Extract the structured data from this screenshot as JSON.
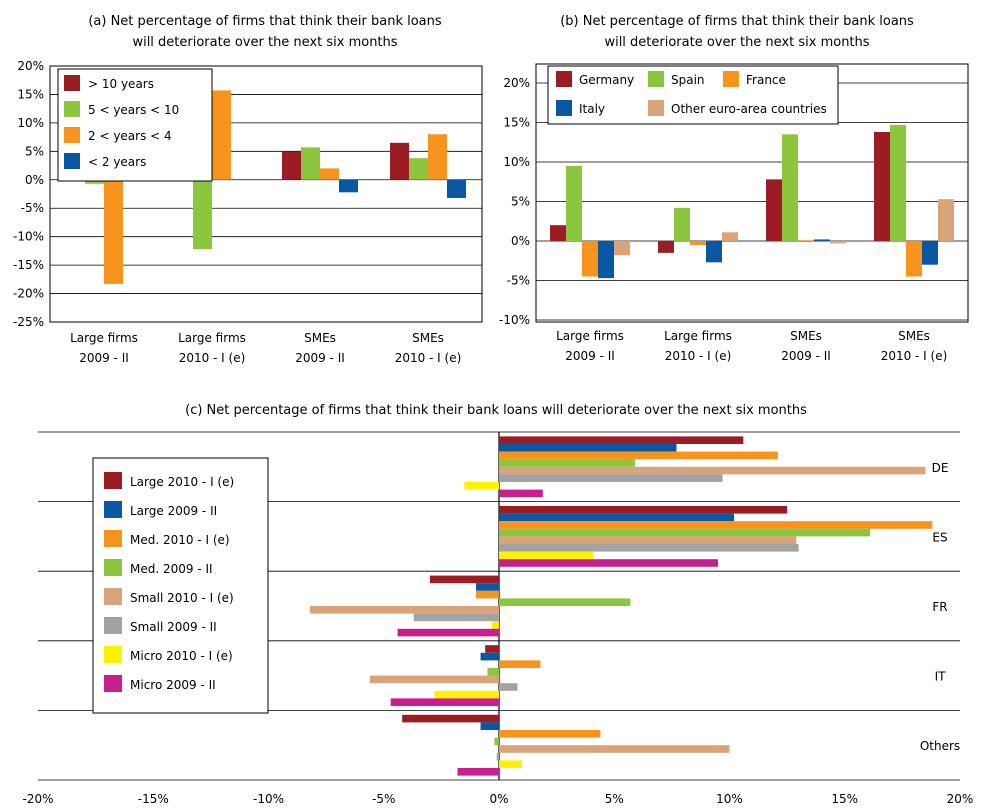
{
  "chart_data": [
    {
      "id": "a",
      "type": "bar",
      "title_lines": [
        "(a) Net percentage of firms that think their bank loans",
        "will deteriorate over the next six months"
      ],
      "categories": [
        [
          "Large firms",
          "2009 - II"
        ],
        [
          "Large firms",
          "2010 - I (e)"
        ],
        [
          "SMEs",
          "2009 - II"
        ],
        [
          "SMEs",
          "2010 - I (e)"
        ]
      ],
      "yticks": [
        "20%",
        "15%",
        "10%",
        "5%",
        "0%",
        "-5%",
        "-10%",
        "-15%",
        "-20%",
        "-25%"
      ],
      "ylim": [
        -25,
        20
      ],
      "grid": true,
      "legend_position": "top-left",
      "series": [
        {
          "name": "> 10 years",
          "color": "#9b1c22",
          "values": [
            null,
            1.0,
            5.0,
            6.5
          ]
        },
        {
          "name": "5 < years < 10",
          "color": "#8cc63f",
          "values": [
            -0.7,
            -12.2,
            5.7,
            3.8
          ]
        },
        {
          "name": "2 < years < 4",
          "color": "#f7941d",
          "values": [
            -18.3,
            15.7,
            2.0,
            8.0
          ]
        },
        {
          "name": "< 2 years",
          "color": "#0a57a4",
          "values": [
            null,
            null,
            -2.2,
            -3.2
          ]
        }
      ]
    },
    {
      "id": "b",
      "type": "bar",
      "title_lines": [
        "(b) Net percentage of firms that think their bank loans",
        "will deteriorate over the next six months"
      ],
      "categories": [
        [
          "Large firms",
          "2009 - II"
        ],
        [
          "Large firms",
          "2010 - I (e)"
        ],
        [
          "SMEs",
          "2009 - II"
        ],
        [
          "SMEs",
          "2010 - I (e)"
        ]
      ],
      "yticks": [
        "20%",
        "15%",
        "10%",
        "5%",
        "0%",
        "-5%",
        "-10%"
      ],
      "ylim": [
        -10,
        20
      ],
      "grid": true,
      "legend_position": "top",
      "series": [
        {
          "name": "Germany",
          "color": "#9b1c22",
          "values": [
            2.0,
            -1.5,
            7.8,
            13.8
          ]
        },
        {
          "name": "Spain",
          "color": "#8cc63f",
          "values": [
            9.5,
            4.2,
            13.5,
            14.7
          ]
        },
        {
          "name": "France",
          "color": "#f7941d",
          "values": [
            -4.5,
            -0.5,
            0.1,
            -4.5
          ]
        },
        {
          "name": "Italy",
          "color": "#0a57a4",
          "values": [
            -4.7,
            -2.7,
            0.2,
            -3.0
          ]
        },
        {
          "name": "Other euro-area countries",
          "color": "#d9a47a",
          "values": [
            -1.8,
            1.1,
            -0.3,
            5.3
          ]
        }
      ]
    },
    {
      "id": "c",
      "type": "bar",
      "orientation": "horizontal",
      "title": "(c) Net percentage of firms that think their bank loans will deteriorate over the next six months",
      "categories": [
        "DE",
        "ES",
        "FR",
        "IT",
        "Others"
      ],
      "xticks": [
        "-20%",
        "-15%",
        "-10%",
        "-5%",
        "0%",
        "5%",
        "10%",
        "15%",
        "20%"
      ],
      "xlim": [
        -20,
        20
      ],
      "grid": true,
      "legend_position": "left",
      "series": [
        {
          "name": "Large 2010 - I (e)",
          "color": "#9b1c22",
          "values": [
            10.6,
            12.5,
            -3.0,
            -0.6,
            -4.2
          ]
        },
        {
          "name": "Large 2009 - II",
          "color": "#0a57a4",
          "values": [
            7.7,
            10.2,
            -1.0,
            -0.8,
            -0.8
          ]
        },
        {
          "name": "Med. 2010 - I (e)",
          "color": "#f7941d",
          "values": [
            12.1,
            18.8,
            -1.0,
            1.8,
            4.4
          ]
        },
        {
          "name": "Med. 2009 - II",
          "color": "#8cc63f",
          "values": [
            5.9,
            16.1,
            5.7,
            -0.5,
            -0.2
          ]
        },
        {
          "name": "Small 2010 - I (e)",
          "color": "#d9a47a",
          "values": [
            18.5,
            12.9,
            -8.2,
            -5.6,
            10.0
          ]
        },
        {
          "name": "Small 2009 - II",
          "color": "#a3a3a3",
          "values": [
            9.7,
            13.0,
            -3.7,
            0.8,
            -0.1
          ]
        },
        {
          "name": "Micro 2010 - I (e)",
          "color": "#fff200",
          "values": [
            -1.5,
            4.1,
            -0.3,
            -2.8,
            1.0
          ]
        },
        {
          "name": "Micro 2009 - II",
          "color": "#c71f8e",
          "values": [
            1.9,
            9.5,
            -4.4,
            -4.7,
            -1.8
          ]
        }
      ]
    }
  ]
}
